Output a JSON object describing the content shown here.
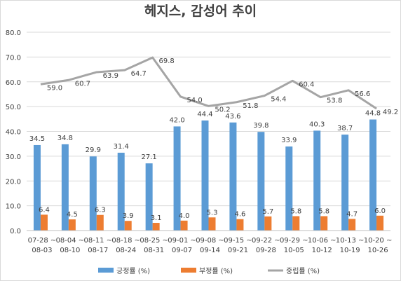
{
  "chart_data": {
    "type": "bar",
    "title": "헤지스, 감성어 추이",
    "categories": [
      [
        "07-28 ~",
        "08-03"
      ],
      [
        "08-04 ~",
        "08-10"
      ],
      [
        "08-11 ~",
        "08-17"
      ],
      [
        "08-18 ~",
        "08-24"
      ],
      [
        "08-25 ~",
        "08-31"
      ],
      [
        "09-01 ~",
        "09-07"
      ],
      [
        "09-08 ~",
        "09-14"
      ],
      [
        "09-15 ~",
        "09-21"
      ],
      [
        "09-22 ~",
        "09-28"
      ],
      [
        "09-29 ~",
        "10-05"
      ],
      [
        "10-06 ~",
        "10-12"
      ],
      [
        "10-13 ~",
        "10-19"
      ],
      [
        "10-20 ~",
        "10-26"
      ]
    ],
    "ylim": [
      0,
      80
    ],
    "yticks": [
      "0.0",
      "10.0",
      "20.0",
      "30.0",
      "40.0",
      "50.0",
      "60.0",
      "70.0",
      "80.0"
    ],
    "grid": true,
    "legend_position": "bottom",
    "series": [
      {
        "name": "긍정률 (%)",
        "type": "bar",
        "color": "#5b9bd5",
        "values": [
          34.5,
          34.8,
          29.9,
          31.4,
          27.1,
          42.0,
          44.4,
          43.6,
          39.8,
          33.9,
          40.3,
          38.7,
          44.8
        ]
      },
      {
        "name": "부정률 (%)",
        "type": "bar",
        "color": "#ed7d31",
        "values": [
          6.4,
          4.5,
          6.3,
          3.9,
          3.1,
          4.0,
          5.3,
          4.6,
          5.7,
          5.8,
          5.8,
          4.7,
          6.0
        ]
      },
      {
        "name": "중립률 (%)",
        "type": "line",
        "color": "#a5a5a5",
        "values": [
          59.0,
          60.7,
          63.9,
          64.7,
          69.8,
          54.0,
          50.2,
          51.8,
          54.4,
          60.4,
          53.8,
          56.6,
          49.2
        ]
      }
    ]
  }
}
